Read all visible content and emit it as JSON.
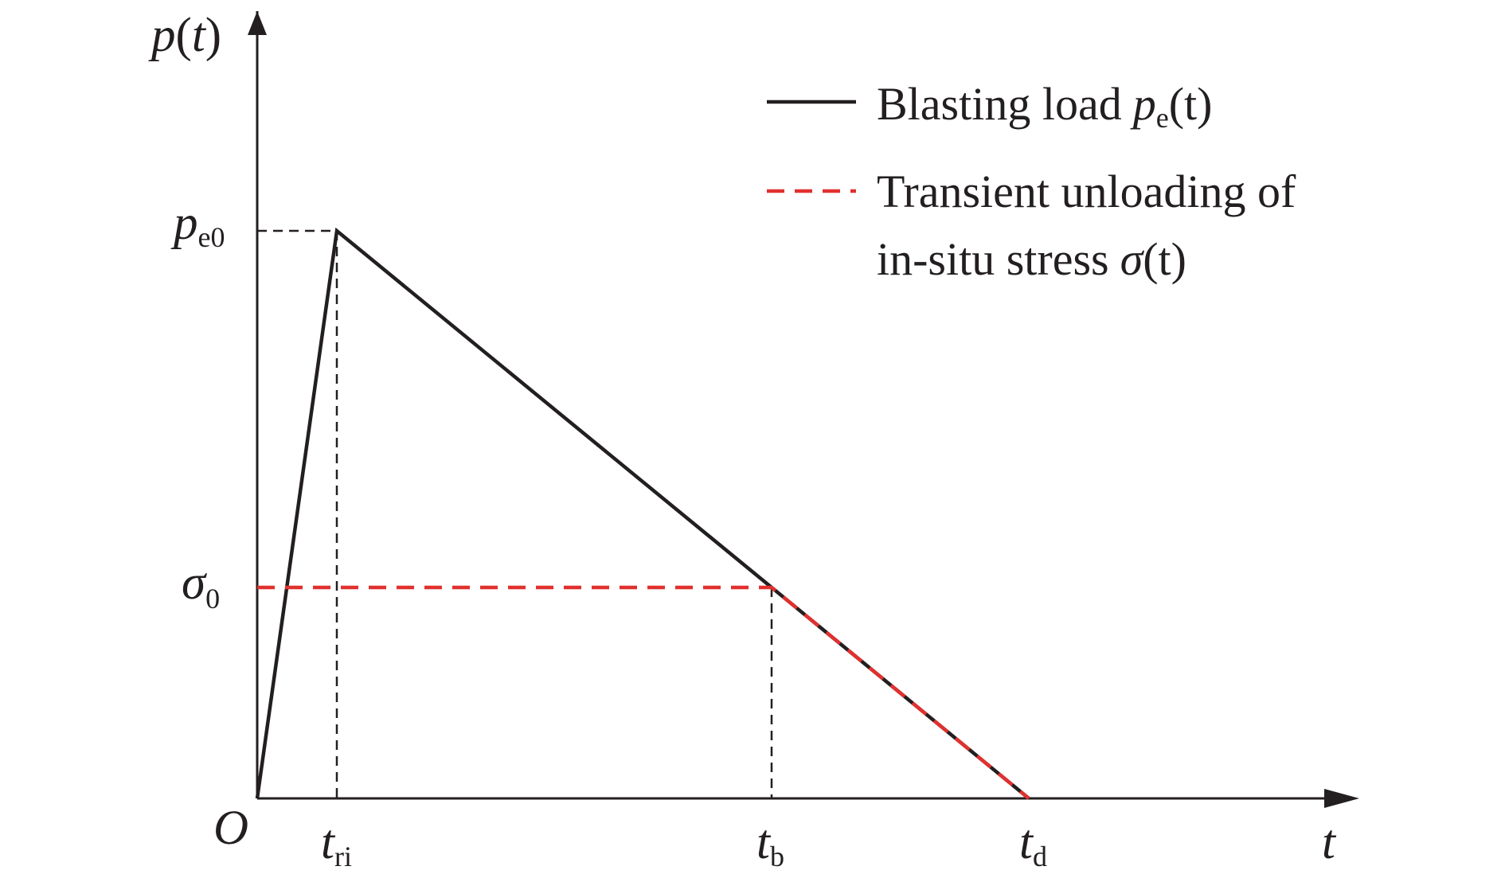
{
  "axes": {
    "y_label": {
      "symbol": "p",
      "arg": "(",
      "var": "t",
      "close": ")"
    },
    "origin": "O",
    "x_label": "t"
  },
  "y_marks": [
    {
      "symbol": "p",
      "sub": "e0"
    },
    {
      "symbol": "σ",
      "sub": "0"
    }
  ],
  "x_marks": [
    {
      "symbol": "t",
      "sub": "ri"
    },
    {
      "symbol": "t",
      "sub": "b"
    },
    {
      "symbol": "t",
      "sub": "d"
    }
  ],
  "legend": [
    {
      "text": "Blasting load",
      "symbol": "p",
      "sub": "e",
      "arg": "(t)"
    },
    {
      "lines": [
        "Transient unloading of",
        "in-situ stress"
      ],
      "symbol": "σ",
      "arg": "(t)"
    }
  ]
}
